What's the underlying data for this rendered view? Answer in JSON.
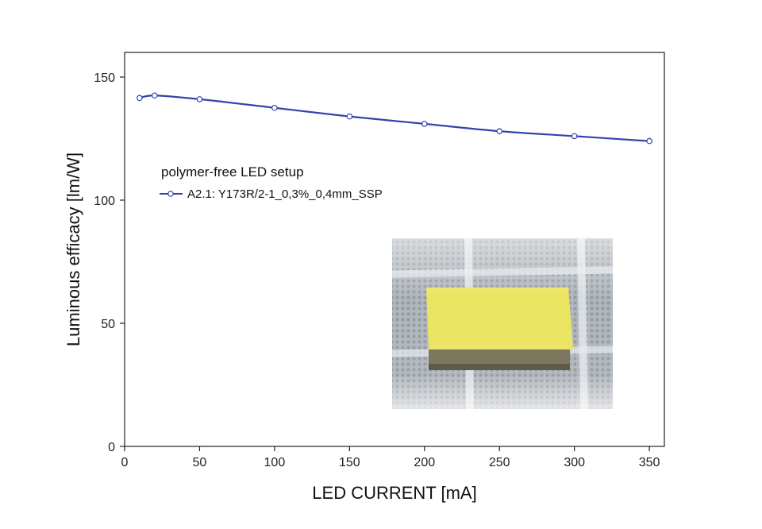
{
  "chart_data": {
    "type": "line",
    "xlabel": "LED CURRENT [mA]",
    "ylabel": "Luminous efficacy [lm/W]",
    "xlim": [
      0,
      360
    ],
    "ylim": [
      0,
      160
    ],
    "xticks": [
      0,
      50,
      100,
      150,
      200,
      250,
      300,
      350
    ],
    "yticks": [
      0,
      50,
      100,
      150
    ],
    "grid": false,
    "legend_title": "polymer-free LED setup",
    "legend_position": "upper-left",
    "series": [
      {
        "name": "A2.1: Y173R/2-1_0,3%_0,4mm_SSP",
        "color": "#3344aa",
        "marker": "open-circle",
        "x": [
          10,
          20,
          50,
          100,
          150,
          200,
          250,
          300,
          350
        ],
        "y": [
          141.5,
          142.5,
          141.0,
          137.5,
          134.0,
          131.0,
          128.0,
          126.0,
          124.0
        ]
      }
    ],
    "inset_photo": "yellow phosphor-converter plate on a grid substrate"
  }
}
